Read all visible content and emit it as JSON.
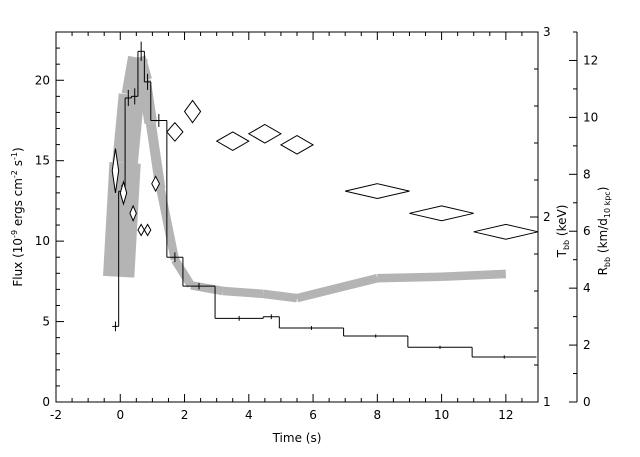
{
  "chart_data": {
    "type": "line",
    "xlabel": "Time (s)",
    "x_ticks": [
      "-2",
      "0",
      "2",
      "4",
      "6",
      "8",
      "10",
      "12"
    ],
    "xlim": [
      -2,
      13
    ],
    "left_axis": {
      "label_main": "Flux (10",
      "label_exp1": "-9",
      "label_mid": " ergs cm",
      "label_exp2": "-2",
      "label_mid2": " s",
      "label_exp3": "-1",
      "label_end": ")",
      "ylim": [
        0,
        23
      ],
      "ticks": [
        "0",
        "5",
        "10",
        "15",
        "20"
      ]
    },
    "kt_axis": {
      "label_main": "T",
      "label_sub": "bb",
      "label_end": " (keV)",
      "ylim": [
        1,
        3
      ],
      "ticks": [
        "1",
        "2",
        "3"
      ]
    },
    "radius_axis": {
      "label_main": "R",
      "label_sub": "bb",
      "label_mid": " (km/d",
      "label_sub2": "10 kpc",
      "label_end": ")",
      "ylim": [
        0,
        13
      ],
      "ticks": [
        "0",
        "2",
        "4",
        "6",
        "8",
        "10",
        "12"
      ]
    },
    "series": [
      {
        "kind": "step",
        "axis": "flux",
        "bins": [
          [
            -0.25,
            -0.05,
            4.7,
            0.3
          ],
          [
            -0.05,
            0.15,
            13.1,
            0.4
          ],
          [
            0.15,
            0.35,
            18.9,
            0.5
          ],
          [
            0.35,
            0.55,
            19.0,
            0.5
          ],
          [
            0.55,
            0.75,
            21.8,
            0.6
          ],
          [
            0.75,
            0.95,
            19.9,
            0.5
          ],
          [
            0.95,
            1.45,
            17.5,
            0.4
          ],
          [
            1.45,
            1.95,
            9.0,
            0.3
          ],
          [
            1.95,
            2.95,
            7.2,
            0.2
          ],
          [
            2.95,
            4.45,
            5.2,
            0.15
          ],
          [
            4.45,
            4.95,
            5.3,
            0.15
          ],
          [
            4.95,
            6.95,
            4.6,
            0.12
          ],
          [
            6.95,
            8.95,
            4.1,
            0.1
          ],
          [
            8.95,
            10.95,
            3.4,
            0.1
          ],
          [
            10.95,
            12.95,
            2.8,
            0.1
          ]
        ]
      },
      {
        "kind": "band",
        "axis": "radius",
        "color": "#b4b4b4",
        "points": [
          [
            -0.05,
            4.4,
            1.2
          ],
          [
            0.15,
            8.4,
            1.0
          ],
          [
            0.35,
            10.8,
            0.8
          ],
          [
            0.55,
            12.1,
            0.6
          ],
          [
            0.75,
            11.3,
            0.5
          ],
          [
            0.95,
            9.8,
            0.4
          ],
          [
            1.25,
            7.5,
            0.3
          ],
          [
            1.7,
            5.0,
            0.3
          ],
          [
            2.2,
            4.1,
            0.3
          ],
          [
            3.2,
            3.9,
            0.3
          ],
          [
            4.45,
            3.8,
            0.3
          ],
          [
            5.5,
            3.65,
            0.3
          ],
          [
            8.0,
            4.35,
            0.3
          ],
          [
            10.0,
            4.4,
            0.3
          ],
          [
            12.0,
            4.5,
            0.3
          ]
        ]
      },
      {
        "kind": "diamonds",
        "axis": "kt",
        "points": [
          [
            -0.15,
            2.25,
            0.1,
            0.12
          ],
          [
            0.1,
            2.13,
            0.1,
            0.06
          ],
          [
            0.4,
            2.02,
            0.1,
            0.04
          ],
          [
            0.65,
            1.93,
            0.1,
            0.03
          ],
          [
            0.85,
            1.93,
            0.1,
            0.03
          ],
          [
            1.1,
            2.18,
            0.12,
            0.04
          ],
          [
            1.7,
            2.46,
            0.25,
            0.05
          ],
          [
            2.25,
            2.57,
            0.25,
            0.06
          ],
          [
            3.5,
            2.41,
            0.5,
            0.05
          ],
          [
            4.5,
            2.45,
            0.5,
            0.05
          ],
          [
            5.5,
            2.39,
            0.5,
            0.05
          ],
          [
            8.0,
            2.14,
            1.0,
            0.04
          ],
          [
            10.0,
            2.02,
            1.0,
            0.04
          ],
          [
            12.0,
            1.92,
            1.0,
            0.04
          ]
        ]
      }
    ]
  }
}
